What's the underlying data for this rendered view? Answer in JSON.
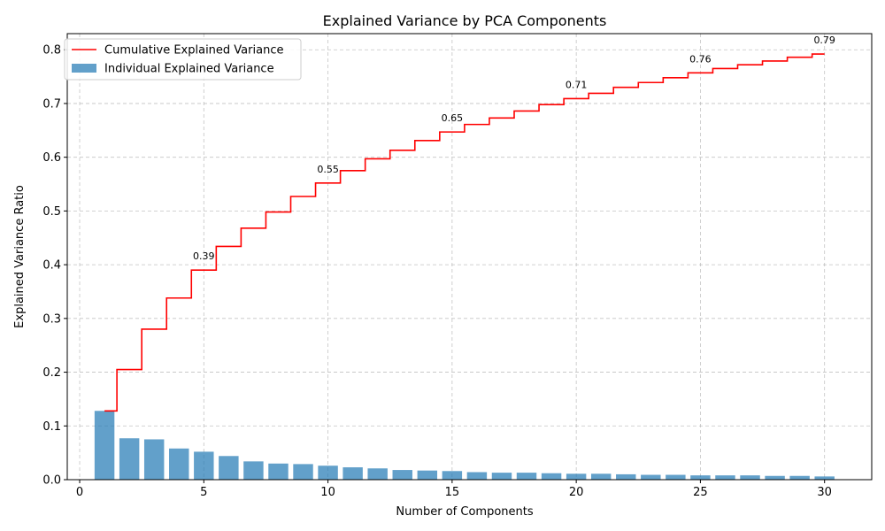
{
  "chart_data": {
    "type": "bar",
    "title": "Explained Variance by PCA Components",
    "xlabel": "Number of Components",
    "ylabel": "Explained Variance Ratio",
    "xlim": [
      -0.5,
      31.9
    ],
    "ylim": [
      0,
      0.83
    ],
    "xticks": [
      0,
      5,
      10,
      15,
      20,
      25,
      30
    ],
    "yticks": [
      0.0,
      0.1,
      0.2,
      0.3,
      0.4,
      0.5,
      0.6,
      0.7,
      0.8
    ],
    "grid": true,
    "legend_position": "top-left",
    "x": [
      1,
      2,
      3,
      4,
      5,
      6,
      7,
      8,
      9,
      10,
      11,
      12,
      13,
      14,
      15,
      16,
      17,
      18,
      19,
      20,
      21,
      22,
      23,
      24,
      25,
      26,
      27,
      28,
      29,
      30
    ],
    "series": [
      {
        "name": "Cumulative Explained Variance",
        "kind": "step",
        "color": "#ff0000",
        "values": [
          0.128,
          0.205,
          0.28,
          0.338,
          0.39,
          0.434,
          0.468,
          0.498,
          0.527,
          0.552,
          0.575,
          0.597,
          0.613,
          0.631,
          0.647,
          0.661,
          0.673,
          0.686,
          0.698,
          0.709,
          0.719,
          0.73,
          0.739,
          0.748,
          0.757,
          0.765,
          0.772,
          0.779,
          0.786,
          0.792
        ]
      },
      {
        "name": "Individual Explained Variance",
        "kind": "bar",
        "color": "#1f77b4",
        "values": [
          0.128,
          0.077,
          0.075,
          0.058,
          0.052,
          0.044,
          0.034,
          0.03,
          0.029,
          0.026,
          0.023,
          0.021,
          0.018,
          0.017,
          0.016,
          0.014,
          0.013,
          0.013,
          0.012,
          0.011,
          0.011,
          0.01,
          0.009,
          0.009,
          0.008,
          0.008,
          0.008,
          0.007,
          0.007,
          0.006
        ]
      }
    ],
    "annotations": [
      {
        "x": 5,
        "y": 0.39,
        "text": "0.39"
      },
      {
        "x": 10,
        "y": 0.552,
        "text": "0.55"
      },
      {
        "x": 15,
        "y": 0.647,
        "text": "0.65"
      },
      {
        "x": 20,
        "y": 0.709,
        "text": "0.71"
      },
      {
        "x": 25,
        "y": 0.757,
        "text": "0.76"
      },
      {
        "x": 30,
        "y": 0.792,
        "text": "0.79"
      }
    ]
  }
}
